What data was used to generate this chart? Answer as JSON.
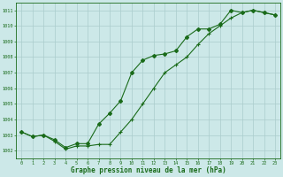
{
  "title": "Graphe pression niveau de la mer (hPa)",
  "bg_color": "#cce8e8",
  "grid_color": "#aacccc",
  "line_color": "#1a6b1a",
  "marker_color": "#1a6b1a",
  "xlim": [
    -0.5,
    23.5
  ],
  "ylim": [
    1001.5,
    1011.5
  ],
  "yticks": [
    1002,
    1003,
    1004,
    1005,
    1006,
    1007,
    1008,
    1009,
    1010,
    1011
  ],
  "xticks": [
    0,
    1,
    2,
    3,
    4,
    5,
    6,
    7,
    8,
    9,
    10,
    11,
    12,
    13,
    14,
    15,
    16,
    17,
    18,
    19,
    20,
    21,
    22,
    23
  ],
  "series1_x": [
    0,
    1,
    2,
    3,
    4,
    5,
    6,
    7,
    8,
    9,
    10,
    11,
    12,
    13,
    14,
    15,
    16,
    17,
    18,
    19,
    20,
    21,
    22,
    23
  ],
  "series1_y": [
    1003.2,
    1002.9,
    1003.0,
    1002.7,
    1002.2,
    1002.45,
    1002.45,
    1003.7,
    1004.4,
    1005.2,
    1007.0,
    1007.8,
    1008.1,
    1008.2,
    1008.4,
    1009.3,
    1009.8,
    1009.8,
    1010.1,
    1011.0,
    1010.85,
    1011.0,
    1010.85,
    1010.7
  ],
  "series2_x": [
    0,
    1,
    2,
    3,
    4,
    5,
    6,
    7,
    8,
    9,
    10,
    11,
    12,
    13,
    14,
    15,
    16,
    17,
    18,
    19,
    20,
    21,
    22,
    23
  ],
  "series2_y": [
    1003.2,
    1002.9,
    1003.0,
    1002.6,
    1002.1,
    1002.3,
    1002.3,
    1002.4,
    1002.4,
    1003.2,
    1004.0,
    1005.0,
    1006.0,
    1007.0,
    1007.5,
    1008.0,
    1008.8,
    1009.5,
    1010.0,
    1010.5,
    1010.85,
    1011.0,
    1010.85,
    1010.7
  ]
}
